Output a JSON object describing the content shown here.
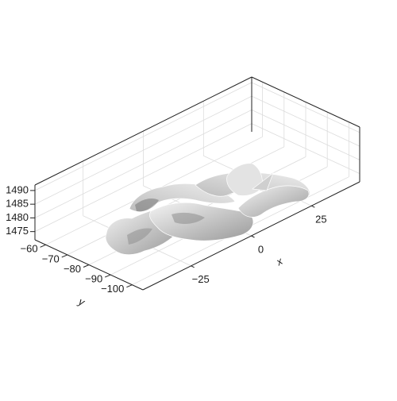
{
  "chart_data": {
    "type": "surface3d",
    "title": "",
    "xlabel": "x",
    "ylabel": "y",
    "zlabel": "",
    "xlim": [
      -45,
      45
    ],
    "ylim": [
      -105,
      -55
    ],
    "zlim": [
      1472,
      1492
    ],
    "xticks": [
      -25,
      0,
      25
    ],
    "xtick_labels": [
      "−25",
      "0",
      "25"
    ],
    "yticks": [
      -60,
      -70,
      -80,
      -90,
      -100
    ],
    "ytick_labels": [
      "−60",
      "−70",
      "−80",
      "−90",
      "−100"
    ],
    "zticks": [
      1475,
      1480,
      1485,
      1490
    ],
    "ztick_labels": [
      "1475",
      "1480",
      "1485",
      "1490"
    ],
    "grid": true,
    "surface_color": "#d9d9d9",
    "edge_color": "#ffffff",
    "pane_color": "#ffffff"
  }
}
